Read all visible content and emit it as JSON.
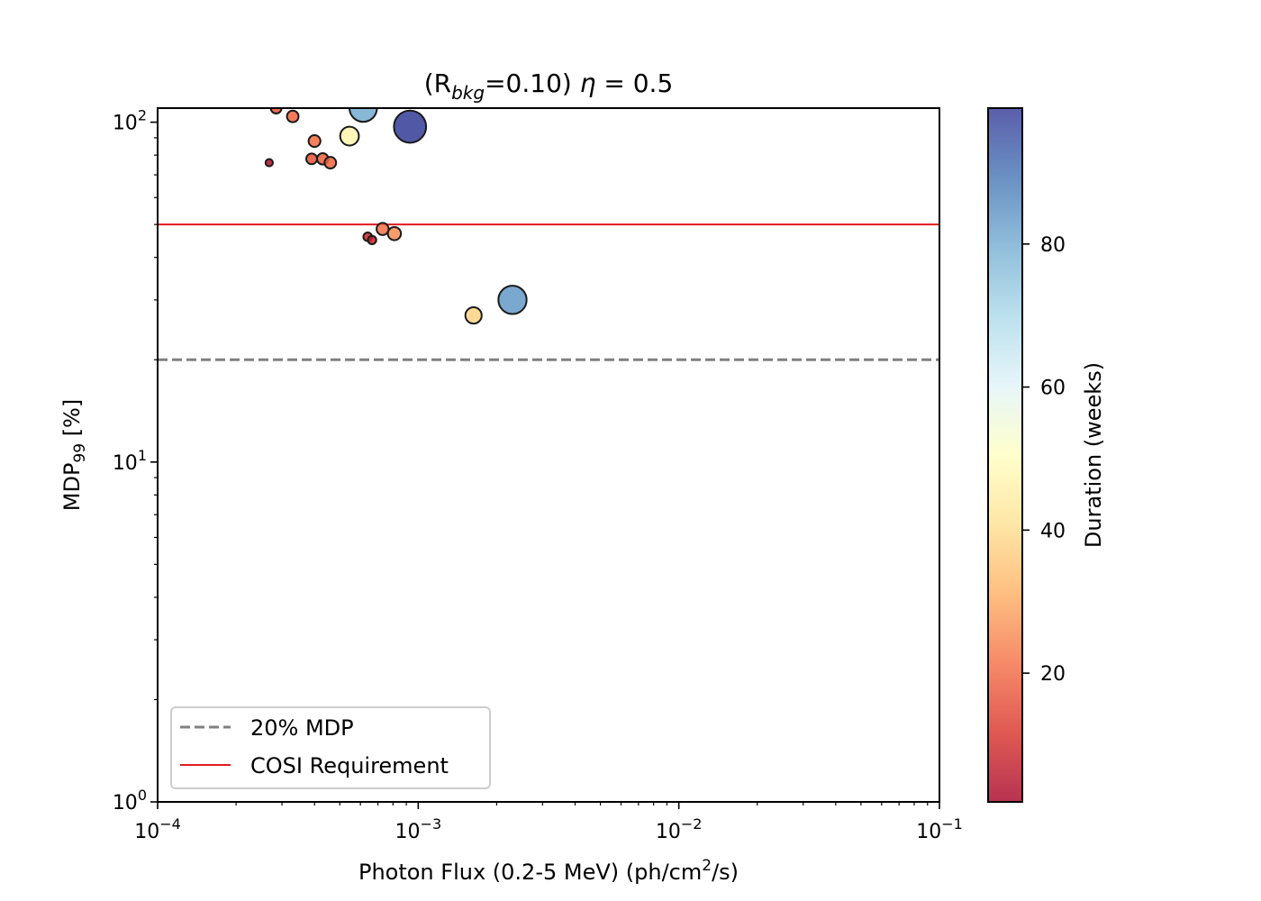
{
  "chart_data": {
    "type": "scatter",
    "title": "(R<sub>bkg</sub>=0.10) η = 0.5",
    "title_parts": {
      "pre": "(R",
      "sub": "bkg",
      "post": "=0.10) ",
      "eta": "η",
      "tail": " = 0.5"
    },
    "xlabel": "Photon Flux (0.2-5 MeV) (ph/cm²/s)",
    "xlabel_parts": {
      "pre": "Photon Flux (0.2-5 MeV) (ph/cm",
      "sup": "2",
      "post": "/s)"
    },
    "ylabel": "MDP₉₉ [%]",
    "ylabel_parts": {
      "pre": "MDP",
      "sub": "99",
      "post": " [%]"
    },
    "xscale": "log",
    "yscale": "log",
    "xlim": [
      0.0001,
      0.1
    ],
    "ylim": [
      1,
      110
    ],
    "x_ticks": [
      {
        "value": 0.0001,
        "base": "10",
        "exp": "−4"
      },
      {
        "value": 0.001,
        "base": "10",
        "exp": "−3"
      },
      {
        "value": 0.01,
        "base": "10",
        "exp": "−2"
      },
      {
        "value": 0.1,
        "base": "10",
        "exp": "−1"
      }
    ],
    "y_ticks": [
      {
        "value": 1,
        "base": "10",
        "exp": "0"
      },
      {
        "value": 10,
        "base": "10",
        "exp": "1"
      },
      {
        "value": 100,
        "base": "10",
        "exp": "2"
      }
    ],
    "reference_lines": [
      {
        "name": "20% MDP",
        "y": 20,
        "color": "#808080",
        "style": "dashed"
      },
      {
        "name": "COSI Requirement",
        "y": 50,
        "color": "#e31a1c",
        "style": "solid"
      }
    ],
    "legend": {
      "placement": "lower-left",
      "entries": [
        "20% MDP",
        "COSI Requirement"
      ]
    },
    "colorbar": {
      "label": "Duration (weeks)",
      "min": 2,
      "max": 99,
      "colormap": "RdYlBu",
      "ticks": [
        20,
        40,
        60,
        80
      ]
    },
    "points": [
      {
        "x": 0.000285,
        "y": 110,
        "duration": 17
      },
      {
        "x": 0.00033,
        "y": 104,
        "duration": 20
      },
      {
        "x": 0.000615,
        "y": 110,
        "duration": 80
      },
      {
        "x": 0.00093,
        "y": 97,
        "duration": 98
      },
      {
        "x": 0.0004,
        "y": 88,
        "duration": 21
      },
      {
        "x": 0.000545,
        "y": 91,
        "duration": 47
      },
      {
        "x": 0.000268,
        "y": 76,
        "duration": 4
      },
      {
        "x": 0.00039,
        "y": 78,
        "duration": 17
      },
      {
        "x": 0.00043,
        "y": 78,
        "duration": 19
      },
      {
        "x": 0.00046,
        "y": 76,
        "duration": 20
      },
      {
        "x": 0.00064,
        "y": 46,
        "duration": 9
      },
      {
        "x": 0.000665,
        "y": 45,
        "duration": 8
      },
      {
        "x": 0.00073,
        "y": 48.5,
        "duration": 22
      },
      {
        "x": 0.00081,
        "y": 47,
        "duration": 26
      },
      {
        "x": 0.00163,
        "y": 27,
        "duration": 38
      },
      {
        "x": 0.0023,
        "y": 30,
        "duration": 83
      }
    ]
  }
}
